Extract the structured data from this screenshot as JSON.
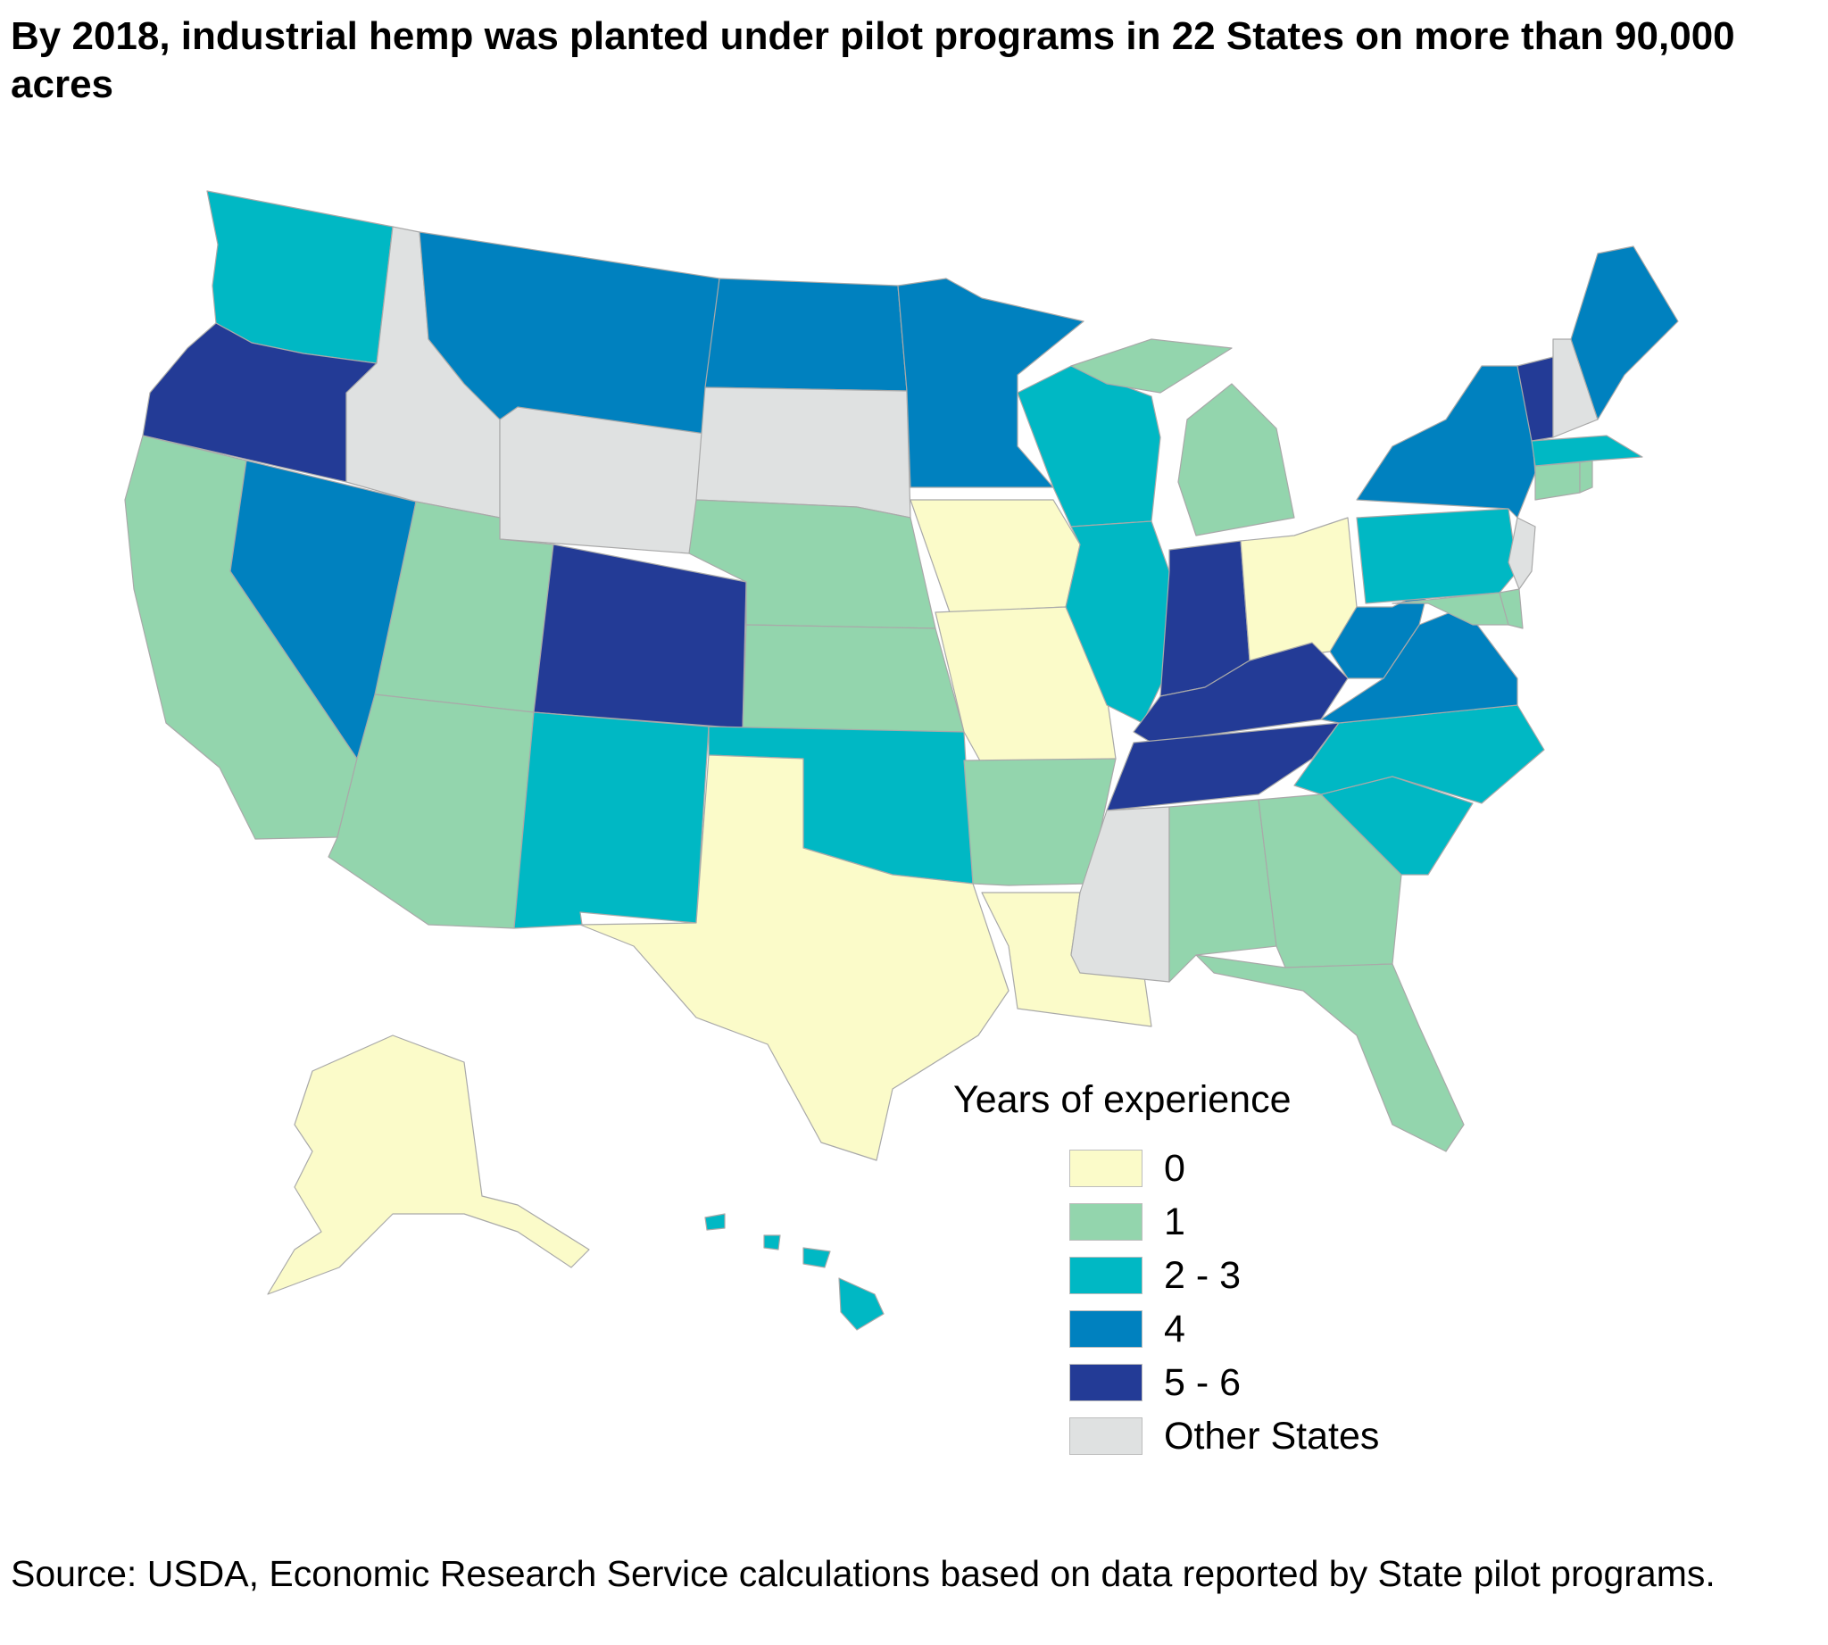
{
  "title": "By 2018, industrial hemp was planted under pilot programs in 22 States on more than 90,000 acres",
  "source": "Source: USDA, Economic Research Service calculations based on data reported by State pilot programs.",
  "legend": {
    "title": "Years of experience",
    "items": [
      {
        "label": "0",
        "color": "#fbfbc9"
      },
      {
        "label": "1",
        "color": "#93d5ad"
      },
      {
        "label": "2 - 3",
        "color": "#00b8c4"
      },
      {
        "label": "4",
        "color": "#0081bf"
      },
      {
        "label": "5 - 6",
        "color": "#233b96"
      },
      {
        "label": "Other States",
        "color": "#dfe1e1"
      }
    ]
  },
  "states": {
    "WA": "2 - 3",
    "OR": "5 - 6",
    "CA": "1",
    "ID": "Other States",
    "NV": "4",
    "MT": "4",
    "WY": "Other States",
    "UT": "1",
    "AZ": "1",
    "CO": "5 - 6",
    "NM": "2 - 3",
    "ND": "4",
    "SD": "Other States",
    "NE": "1",
    "KS": "1",
    "OK": "2 - 3",
    "TX": "0",
    "MN": "4",
    "IA": "0",
    "MO": "0",
    "AR": "1",
    "LA": "0",
    "WI": "2 - 3",
    "IL": "2 - 3",
    "MI": "1",
    "IN": "5 - 6",
    "OH": "0",
    "KY": "5 - 6",
    "TN": "5 - 6",
    "MS": "Other States",
    "AL": "1",
    "GA": "1",
    "FL": "1",
    "SC": "2 - 3",
    "NC": "2 - 3",
    "VA": "4",
    "WV": "4",
    "PA": "2 - 3",
    "NY": "4",
    "VT": "5 - 6",
    "NH": "Other States",
    "ME": "4",
    "MA": "2 - 3",
    "RI": "1",
    "CT": "1",
    "NJ": "Other States",
    "DE": "1",
    "MD": "1",
    "AK": "0",
    "HI": "2 - 3"
  }
}
